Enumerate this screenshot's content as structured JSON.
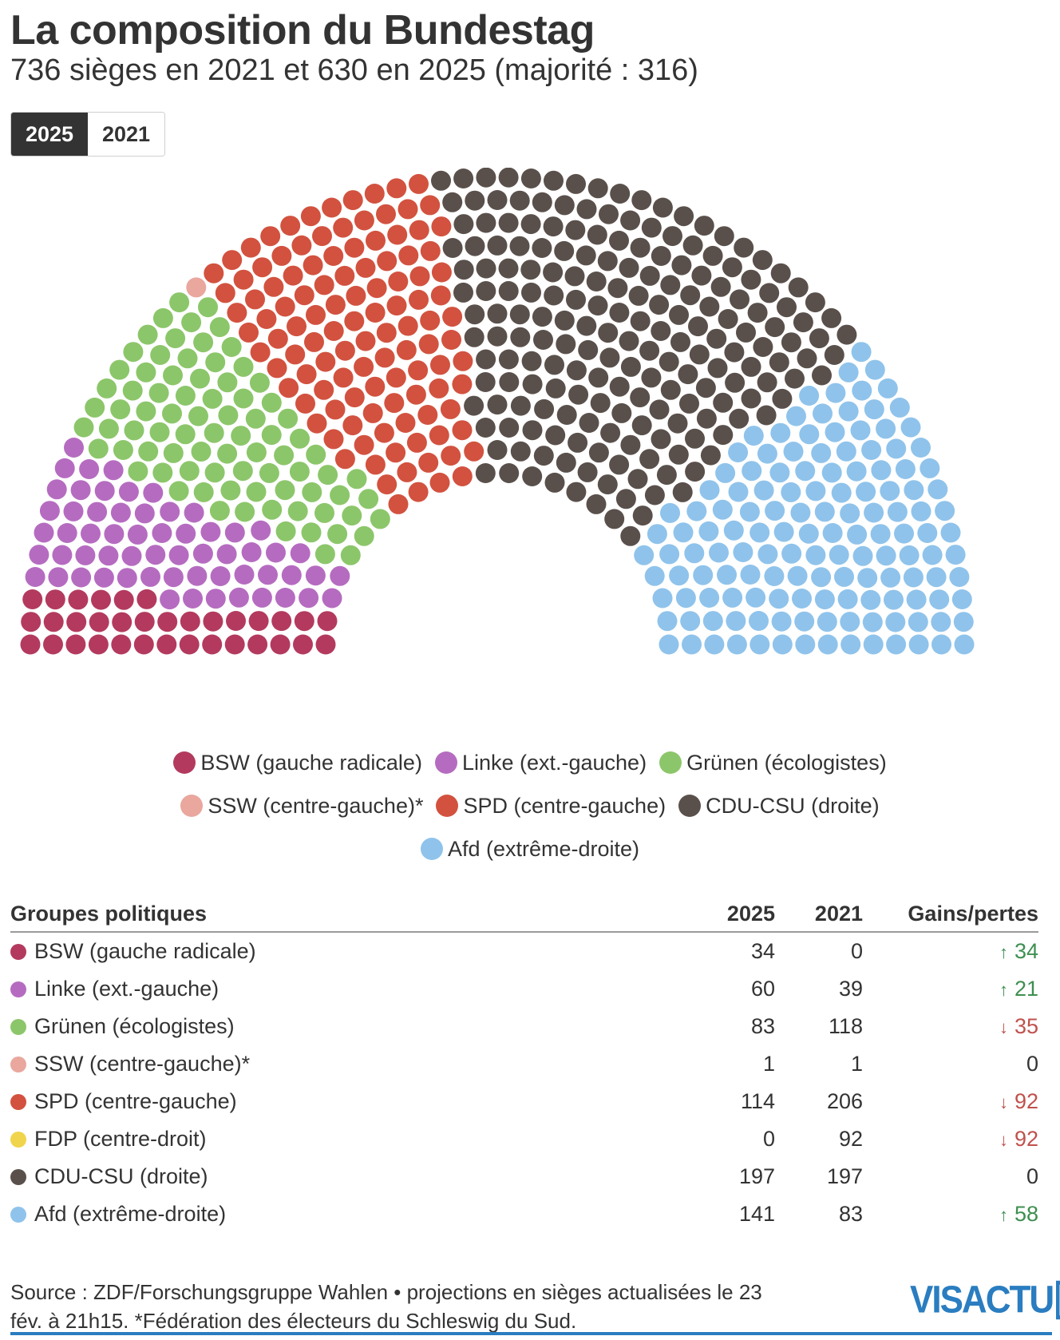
{
  "title": "La composition du Bundestag",
  "subtitle": "736 sièges en 2021 et 630 en 2025 (majorité : 316)",
  "toggle": {
    "active": "2025",
    "inactive": "2021"
  },
  "colors": {
    "BSW": "#b33a5e",
    "Linke": "#b56cc0",
    "Grunen": "#8cc66a",
    "SSW": "#e9a79e",
    "SPD": "#d2523f",
    "FDP": "#f0d44c",
    "CDU": "#5a504b",
    "AfD": "#8fc3eb"
  },
  "legend": {
    "row1": [
      {
        "label": "BSW (gauche radicale)",
        "color": "#b33a5e"
      },
      {
        "label": "Linke (ext.-gauche)",
        "color": "#b56cc0"
      },
      {
        "label": "Grünen (écologistes)",
        "color": "#8cc66a"
      }
    ],
    "row2": [
      {
        "label": "SSW (centre-gauche)*",
        "color": "#e9a79e"
      },
      {
        "label": "SPD (centre-gauche)",
        "color": "#d2523f"
      },
      {
        "label": "CDU-CSU (droite)",
        "color": "#5a504b"
      }
    ],
    "row3": [
      {
        "label": "Afd (extrême-droite)",
        "color": "#8fc3eb"
      }
    ]
  },
  "table": {
    "headers": {
      "group": "Groupes politiques",
      "y2025": "2025",
      "y2021": "2021",
      "gain": "Gains/pertes"
    },
    "rows": [
      {
        "name": "BSW (gauche radicale)",
        "color": "#b33a5e",
        "y2025": "34",
        "y2021": "0",
        "dir": "up",
        "arrow": "↑",
        "gain": "34"
      },
      {
        "name": "Linke (ext.-gauche)",
        "color": "#b56cc0",
        "y2025": "60",
        "y2021": "39",
        "dir": "up",
        "arrow": "↑",
        "gain": "21"
      },
      {
        "name": "Grünen (écologistes)",
        "color": "#8cc66a",
        "y2025": "83",
        "y2021": "118",
        "dir": "down",
        "arrow": "↓",
        "gain": "35"
      },
      {
        "name": "SSW (centre-gauche)*",
        "color": "#e9a79e",
        "y2025": "1",
        "y2021": "1",
        "dir": "zero",
        "arrow": "",
        "gain": "0"
      },
      {
        "name": "SPD (centre-gauche)",
        "color": "#d2523f",
        "y2025": "114",
        "y2021": "206",
        "dir": "down",
        "arrow": "↓",
        "gain": "92"
      },
      {
        "name": "FDP (centre-droit)",
        "color": "#f0d44c",
        "y2025": "0",
        "y2021": "92",
        "dir": "down",
        "arrow": "↓",
        "gain": "92"
      },
      {
        "name": "CDU-CSU (droite)",
        "color": "#5a504b",
        "y2025": "197",
        "y2021": "197",
        "dir": "zero",
        "arrow": "",
        "gain": "0"
      },
      {
        "name": "Afd (extrême-droite)",
        "color": "#8fc3eb",
        "y2025": "141",
        "y2021": "83",
        "dir": "up",
        "arrow": "↑",
        "gain": "58"
      }
    ]
  },
  "chart_data": {
    "type": "hemicycle",
    "year_shown": "2025",
    "total_seats": 630,
    "series": [
      {
        "name": "BSW (gauche radicale)",
        "seats": 34,
        "color": "#b33a5e"
      },
      {
        "name": "Linke (ext.-gauche)",
        "seats": 60,
        "color": "#b56cc0"
      },
      {
        "name": "Grünen (écologistes)",
        "seats": 83,
        "color": "#8cc66a"
      },
      {
        "name": "SSW (centre-gauche)*",
        "seats": 1,
        "color": "#e9a79e"
      },
      {
        "name": "SPD (centre-gauche)",
        "seats": 114,
        "color": "#d2523f"
      },
      {
        "name": "CDU-CSU (droite)",
        "seats": 197,
        "color": "#5a504b"
      },
      {
        "name": "Afd (extrême-droite)",
        "seats": 141,
        "color": "#8fc3eb"
      }
    ]
  },
  "source": {
    "line1": "Source : ZDF/Forschungsgruppe Wahlen • projections en sièges actualisées le 23",
    "line2": "fév. à 21h15. *Fédération des électeurs du Schleswig du Sud."
  },
  "logo": {
    "text": "VISACTU"
  }
}
